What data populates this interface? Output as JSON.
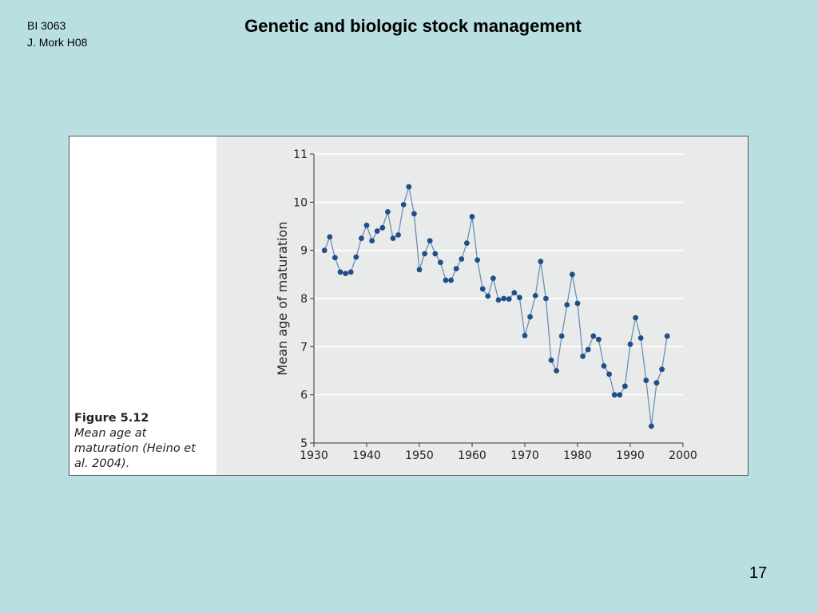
{
  "header": {
    "course_line1": "BI 3063",
    "course_line2": "J. Mork H08",
    "title": "Genetic and biologic stock management"
  },
  "figure": {
    "label": "Figure 5.12",
    "caption": "Mean age at maturation (Heino et al. 2004)."
  },
  "footer": {
    "page_number": "17"
  },
  "chart_data": {
    "type": "line",
    "title": "",
    "xlabel": "",
    "ylabel": "Mean age of maturation",
    "xlim": [
      1930,
      2000
    ],
    "ylim": [
      5,
      11
    ],
    "xticks": [
      1930,
      1940,
      1950,
      1960,
      1970,
      1980,
      1990,
      2000
    ],
    "yticks": [
      5,
      6,
      7,
      8,
      9,
      10,
      11
    ],
    "grid": "horizontal",
    "line_color": "#6a8fb8",
    "marker_color": "#1f4f87",
    "series": [
      {
        "x": [
          1932,
          1933,
          1934,
          1935,
          1936,
          1937,
          1938,
          1939,
          1940,
          1941,
          1942,
          1943,
          1944,
          1945,
          1946,
          1947,
          1948,
          1949,
          1950,
          1951,
          1952,
          1953,
          1954,
          1955,
          1956,
          1957,
          1958,
          1959,
          1960,
          1961,
          1962,
          1963,
          1964,
          1965,
          1966,
          1967,
          1968,
          1969,
          1970,
          1971,
          1972,
          1973,
          1974,
          1975,
          1976,
          1977,
          1978,
          1979,
          1980,
          1981,
          1982,
          1983,
          1984,
          1985,
          1986,
          1987,
          1988,
          1989,
          1990,
          1991,
          1992,
          1993,
          1994,
          1995,
          1996,
          1997
        ],
        "y": [
          9.0,
          9.28,
          8.85,
          8.55,
          8.52,
          8.55,
          8.86,
          9.25,
          9.52,
          9.2,
          9.4,
          9.47,
          9.8,
          9.25,
          9.32,
          9.95,
          10.32,
          9.76,
          8.6,
          8.93,
          9.2,
          8.93,
          8.75,
          8.38,
          8.38,
          8.62,
          8.82,
          9.15,
          9.7,
          8.8,
          8.2,
          8.05,
          8.42,
          7.97,
          8.0,
          7.99,
          8.12,
          8.02,
          7.23,
          7.62,
          8.06,
          8.77,
          8.0,
          6.72,
          6.5,
          7.22,
          7.87,
          8.5,
          7.9,
          6.8,
          6.94,
          7.22,
          7.15,
          6.6,
          6.43,
          6.0,
          6.0,
          6.18,
          7.05,
          7.6,
          7.18,
          6.3,
          5.35,
          6.25,
          6.53,
          7.22
        ]
      }
    ]
  }
}
